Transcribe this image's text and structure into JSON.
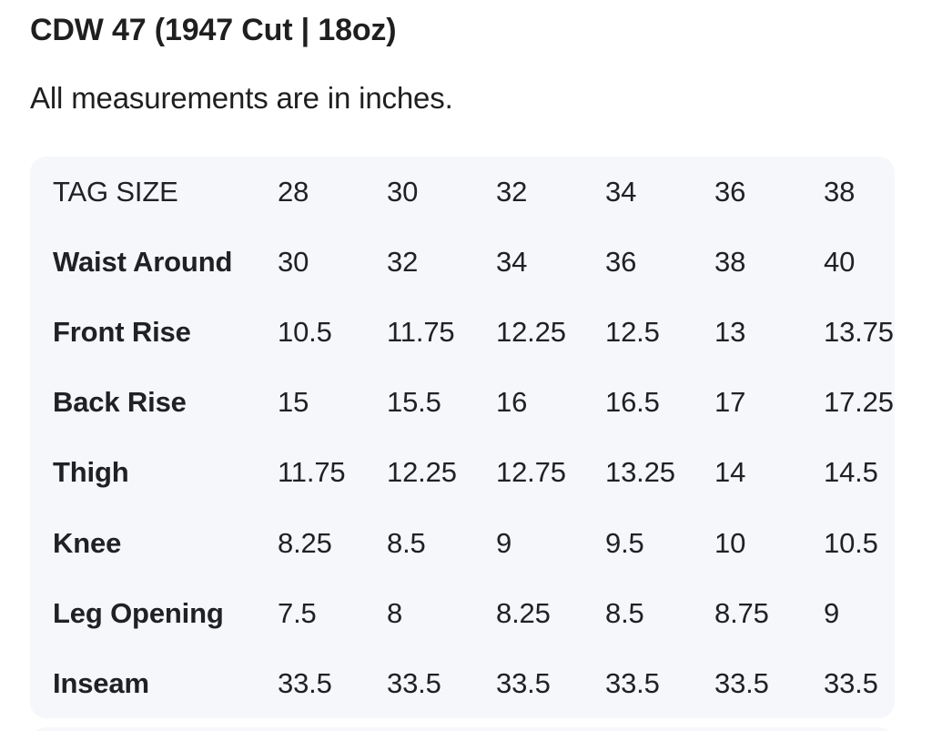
{
  "header": {
    "title": "CDW 47 (1947 Cut | 18oz)",
    "note": "All measurements are in inches."
  },
  "size_table": {
    "header_row": {
      "label": "TAG SIZE",
      "values": [
        "28",
        "30",
        "32",
        "34",
        "36",
        "38"
      ]
    },
    "rows": [
      {
        "label": "Waist Around",
        "values": [
          "30",
          "32",
          "34",
          "36",
          "38",
          "40"
        ]
      },
      {
        "label": "Front Rise",
        "values": [
          "10.5",
          "11.75",
          "12.25",
          "12.5",
          "13",
          "13.75"
        ]
      },
      {
        "label": "Back Rise",
        "values": [
          "15",
          "15.5",
          "16",
          "16.5",
          "17",
          "17.25"
        ]
      },
      {
        "label": "Thigh",
        "values": [
          "11.75",
          "12.25",
          "12.75",
          "13.25",
          "14",
          "14.5"
        ]
      },
      {
        "label": "Knee",
        "values": [
          "8.25",
          "8.5",
          "9",
          "9.5",
          "10",
          "10.5"
        ]
      },
      {
        "label": "Leg Opening",
        "values": [
          "7.5",
          "8",
          "8.25",
          "8.5",
          "8.75",
          "9"
        ]
      },
      {
        "label": "Inseam",
        "values": [
          "33.5",
          "33.5",
          "33.5",
          "33.5",
          "33.5",
          "33.5"
        ]
      }
    ]
  },
  "colors": {
    "page_bg": "#ffffff",
    "card_bg": "#f6f7fb",
    "heading": "#1f1f1f",
    "text": "#202124"
  }
}
